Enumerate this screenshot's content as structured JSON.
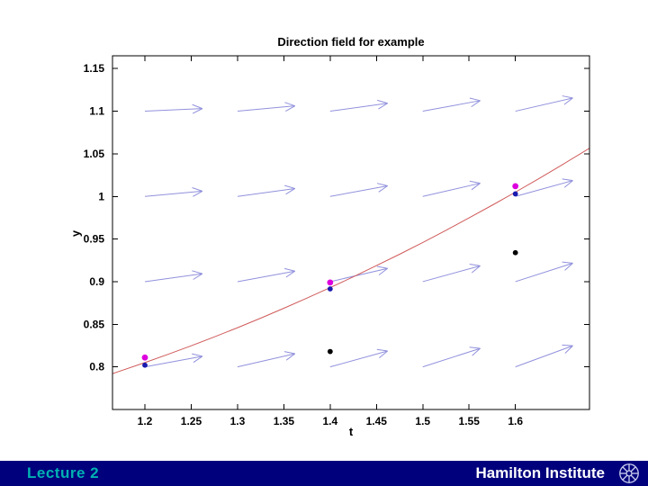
{
  "slide": {
    "footer": {
      "left_label": "Lecture 2",
      "right_label": "Hamilton Institute",
      "bar_color": "#00007d",
      "left_label_color": "#00b2b2",
      "right_label_color": "#ffffff"
    }
  },
  "chart_data": {
    "type": "quiver+line+scatter",
    "title": "Direction field for example",
    "xlabel": "t",
    "ylabel": "y",
    "xlim": [
      1.165,
      1.68
    ],
    "ylim": [
      0.75,
      1.165
    ],
    "xtick_labels": [
      "1.2",
      "1.25",
      "1.3",
      "1.35",
      "1.4",
      "1.45",
      "1.5",
      "1.55",
      "1.6"
    ],
    "ytick_labels": [
      "0.8",
      "0.85",
      "0.9",
      "0.95",
      "1",
      "1.05",
      "1.1",
      "1.15"
    ],
    "grid": false,
    "legend": false,
    "quiver": {
      "description": "direction field arrows on a grid, slope = (t - y)/2",
      "color": "#9191dd",
      "t_grid": [
        1.2,
        1.3,
        1.4,
        1.5,
        1.6
      ],
      "y_grid": [
        0.8,
        0.9,
        1.0,
        1.1
      ],
      "slopes": [
        [
          0.2,
          0.25,
          0.3,
          0.35,
          0.4
        ],
        [
          0.15,
          0.2,
          0.25,
          0.3,
          0.35
        ],
        [
          0.1,
          0.15,
          0.2,
          0.25,
          0.3
        ],
        [
          0.05,
          0.1,
          0.15,
          0.2,
          0.25
        ]
      ],
      "arrow_dt": 0.062
    },
    "solution_curve": {
      "name": "exact-solution-curve",
      "color": "#d05a5a",
      "points": [
        [
          1.165,
          0.792
        ],
        [
          1.2,
          0.805
        ],
        [
          1.225,
          0.8147
        ],
        [
          1.25,
          0.8248
        ],
        [
          1.275,
          0.8352
        ],
        [
          1.3,
          0.846
        ],
        [
          1.325,
          0.8572
        ],
        [
          1.35,
          0.8688
        ],
        [
          1.375,
          0.8807
        ],
        [
          1.4,
          0.893
        ],
        [
          1.425,
          0.9057
        ],
        [
          1.45,
          0.9188
        ],
        [
          1.475,
          0.9322
        ],
        [
          1.5,
          0.946
        ],
        [
          1.525,
          0.9602
        ],
        [
          1.55,
          0.9748
        ],
        [
          1.575,
          0.9897
        ],
        [
          1.6,
          1.005
        ],
        [
          1.625,
          1.0207
        ],
        [
          1.65,
          1.0368
        ],
        [
          1.68,
          1.0565
        ]
      ]
    },
    "scatter_series": [
      {
        "name": "magenta-points",
        "color": "#dd00dd",
        "radius": 3.4,
        "points": [
          [
            1.2,
            0.811
          ],
          [
            1.4,
            0.899
          ],
          [
            1.6,
            1.012
          ]
        ]
      },
      {
        "name": "blue-points",
        "color": "#1a1aae",
        "radius": 2.9,
        "points": [
          [
            1.2,
            0.802
          ],
          [
            1.4,
            0.8915
          ],
          [
            1.6,
            1.003
          ]
        ]
      },
      {
        "name": "black-points",
        "color": "#000000",
        "radius": 2.9,
        "points": [
          [
            1.4,
            0.818
          ],
          [
            1.6,
            0.934
          ]
        ]
      }
    ]
  }
}
